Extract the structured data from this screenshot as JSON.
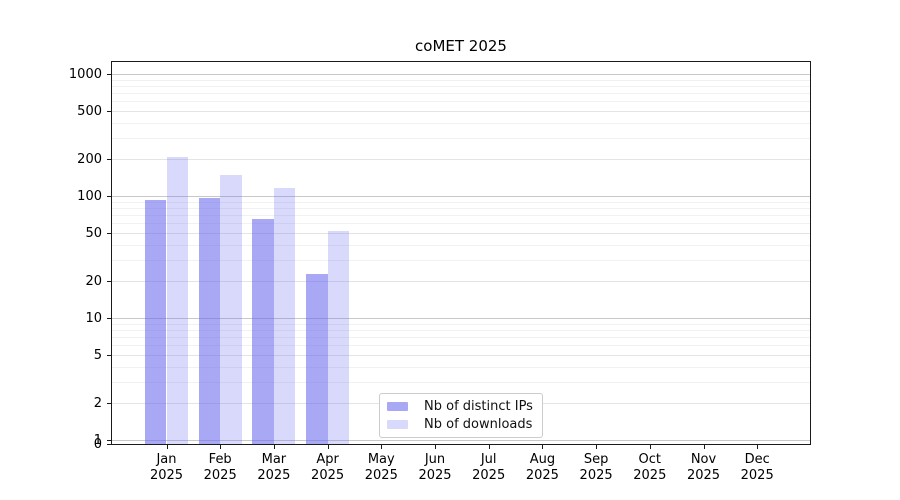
{
  "chart_data": {
    "type": "bar",
    "title": "coMET 2025",
    "x_tick_year": "2025",
    "categories": [
      "Jan",
      "Feb",
      "Mar",
      "Apr",
      "May",
      "Jun",
      "Jul",
      "Aug",
      "Sep",
      "Oct",
      "Nov",
      "Dec"
    ],
    "series": [
      {
        "name": "Nb of distinct IPs",
        "color": "rgba(102,102,238,0.57)",
        "values": [
          92,
          97,
          65,
          23,
          0,
          0,
          0,
          0,
          0,
          0,
          0,
          0
        ]
      },
      {
        "name": "Nb of downloads",
        "color": "rgba(102,102,238,0.25)",
        "values": [
          207,
          149,
          116,
          52,
          0,
          0,
          0,
          0,
          0,
          0,
          0,
          0
        ]
      }
    ],
    "yticks": [
      1000,
      500,
      200,
      100,
      50,
      20,
      10,
      5,
      2,
      1,
      0
    ],
    "yscale": "log (zero at baseline)",
    "grid": "horizontal",
    "legend_position": "bottom-center"
  },
  "colors": {
    "background": "#ffffff",
    "axis": "#1a1a1a",
    "text": "#000000",
    "grid_major": "#c8c8c8",
    "grid_mid": "#e4e4e4",
    "grid_minor": "#f1f1f1",
    "legend_border": "#cccccc",
    "bar_dark": "rgba(102,102,238,0.57)",
    "bar_light": "rgba(102,102,238,0.25)"
  }
}
